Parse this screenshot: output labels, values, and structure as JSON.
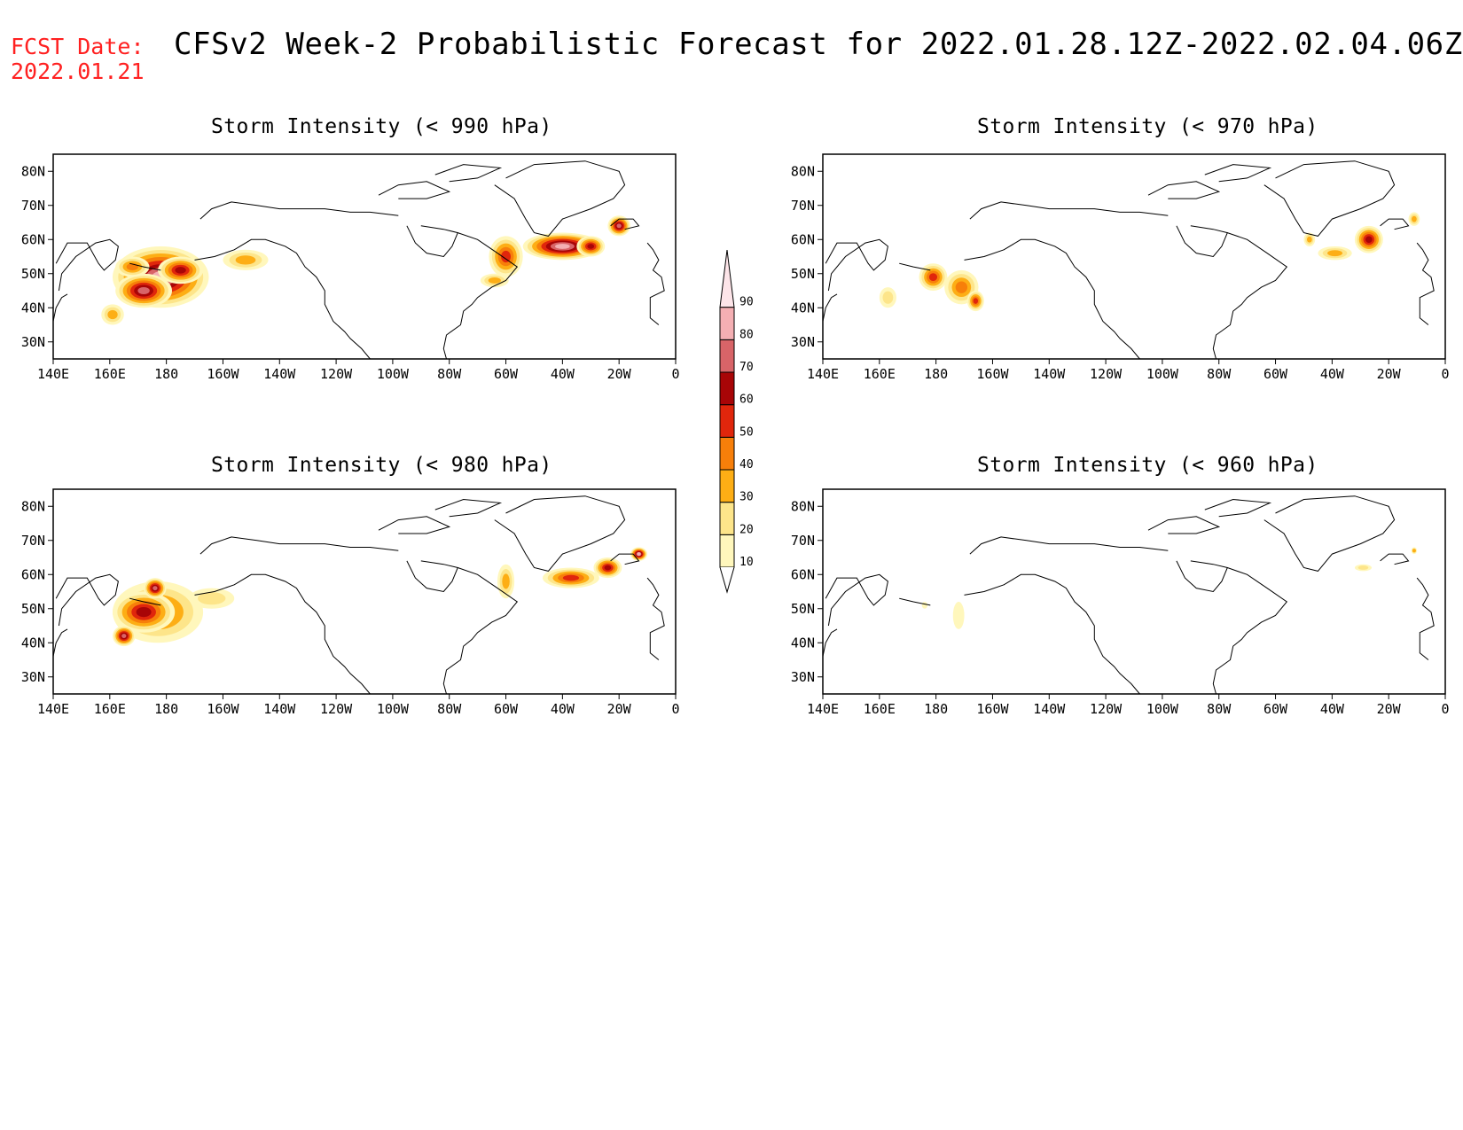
{
  "header": {
    "fcst_label": "FCST Date:",
    "fcst_date": "2022.01.21",
    "title": "CFSv2 Week-2 Probabilistic Forecast for 2022.01.28.12Z-2022.02.04.06Z"
  },
  "axes": {
    "lon_labels": [
      "140E",
      "160E",
      "180",
      "160W",
      "140W",
      "120W",
      "100W",
      "80W",
      "60W",
      "40W",
      "20W",
      "0"
    ],
    "lat_labels": [
      "80N",
      "70N",
      "60N",
      "50N",
      "40N",
      "30N"
    ],
    "lon_range": [
      140,
      360
    ],
    "lat_range": [
      25,
      85
    ]
  },
  "colorbar": {
    "levels": [
      "10",
      "20",
      "30",
      "40",
      "50",
      "60",
      "70",
      "80",
      "90"
    ],
    "colors": [
      "#fff7bc",
      "#fde58a",
      "#fdae15",
      "#f77f0a",
      "#e0260c",
      "#a80507",
      "#d86468",
      "#f4afb3",
      "#fde5e9"
    ]
  },
  "panels": [
    {
      "id": "990",
      "title": "Storm Intensity (< 990 hPa)",
      "blobs": [
        {
          "lon": 178,
          "lat": 49,
          "rlon": 17,
          "rlat": 9,
          "level": 8
        },
        {
          "lon": 172,
          "lat": 45,
          "rlon": 10,
          "rlat": 5,
          "level": 7
        },
        {
          "lon": 185,
          "lat": 51,
          "rlon": 8,
          "rlat": 4,
          "level": 6
        },
        {
          "lon": 168,
          "lat": 52,
          "rlon": 6,
          "rlat": 3,
          "level": 4
        },
        {
          "lon": 161,
          "lat": 38,
          "rlon": 4,
          "rlat": 3,
          "level": 3
        },
        {
          "lon": 208,
          "lat": 54,
          "rlon": 8,
          "rlat": 3,
          "level": 3
        },
        {
          "lon": 300,
          "lat": 55,
          "rlon": 6,
          "rlat": 6,
          "level": 5
        },
        {
          "lon": 296,
          "lat": 48,
          "rlon": 5,
          "rlat": 2,
          "level": 3
        },
        {
          "lon": 320,
          "lat": 58,
          "rlon": 14,
          "rlat": 4,
          "level": 8
        },
        {
          "lon": 330,
          "lat": 58,
          "rlon": 5,
          "rlat": 3,
          "level": 6
        },
        {
          "lon": 340,
          "lat": 64,
          "rlon": 4,
          "rlat": 3,
          "level": 7
        }
      ]
    },
    {
      "id": "970",
      "title": "Storm Intensity (< 970 hPa)",
      "blobs": [
        {
          "lon": 179,
          "lat": 49,
          "rlon": 5,
          "rlat": 4,
          "level": 5
        },
        {
          "lon": 189,
          "lat": 46,
          "rlon": 6,
          "rlat": 5,
          "level": 4
        },
        {
          "lon": 194,
          "lat": 42,
          "rlon": 3,
          "rlat": 3,
          "level": 5
        },
        {
          "lon": 163,
          "lat": 43,
          "rlon": 3,
          "rlat": 3,
          "level": 2
        },
        {
          "lon": 312,
          "lat": 60,
          "rlon": 2,
          "rlat": 2,
          "level": 3
        },
        {
          "lon": 321,
          "lat": 56,
          "rlon": 6,
          "rlat": 2,
          "level": 3
        },
        {
          "lon": 333,
          "lat": 60,
          "rlon": 5,
          "rlat": 4,
          "level": 6
        },
        {
          "lon": 349,
          "lat": 66,
          "rlon": 2,
          "rlat": 2,
          "level": 3
        }
      ]
    },
    {
      "id": "980",
      "title": "Storm Intensity (< 980 hPa)",
      "blobs": [
        {
          "lon": 177,
          "lat": 49,
          "rlon": 16,
          "rlat": 9,
          "level": 4
        },
        {
          "lon": 172,
          "lat": 49,
          "rlon": 11,
          "rlat": 6,
          "level": 6
        },
        {
          "lon": 165,
          "lat": 42,
          "rlon": 4,
          "rlat": 3,
          "level": 7
        },
        {
          "lon": 176,
          "lat": 56,
          "rlon": 4,
          "rlat": 3,
          "level": 7
        },
        {
          "lon": 196,
          "lat": 53,
          "rlon": 8,
          "rlat": 3,
          "level": 2
        },
        {
          "lon": 300,
          "lat": 58,
          "rlon": 3,
          "rlat": 5,
          "level": 3
        },
        {
          "lon": 323,
          "lat": 59,
          "rlon": 10,
          "rlat": 3,
          "level": 5
        },
        {
          "lon": 336,
          "lat": 62,
          "rlon": 5,
          "rlat": 3,
          "level": 6
        },
        {
          "lon": 347,
          "lat": 66,
          "rlon": 3,
          "rlat": 2,
          "level": 8
        }
      ]
    },
    {
      "id": "960",
      "title": "Storm Intensity (< 960 hPa)",
      "blobs": [
        {
          "lon": 188,
          "lat": 48,
          "rlon": 2,
          "rlat": 4,
          "level": 1
        },
        {
          "lon": 176,
          "lat": 51,
          "rlon": 1,
          "rlat": 1,
          "level": 1
        },
        {
          "lon": 331,
          "lat": 62,
          "rlon": 3,
          "rlat": 1,
          "level": 2
        },
        {
          "lon": 349,
          "lat": 67,
          "rlon": 1,
          "rlat": 1,
          "level": 3
        }
      ]
    }
  ]
}
